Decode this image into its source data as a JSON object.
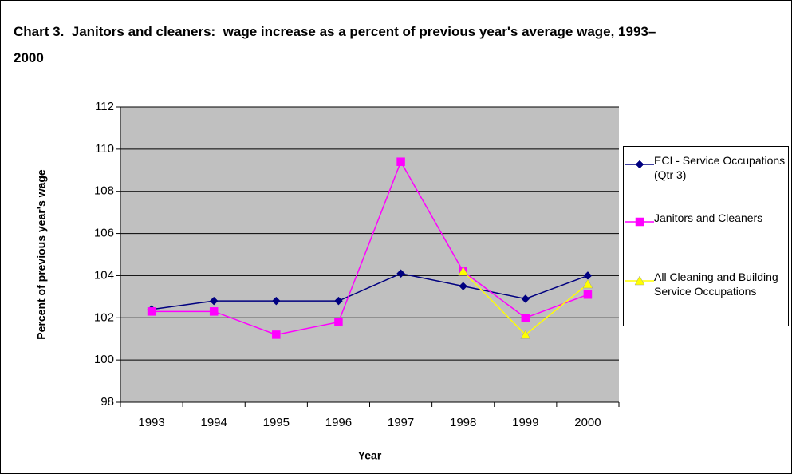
{
  "chart_data": {
    "type": "line",
    "title": "Chart 3.  Janitors and cleaners:  wage increase as a percent of previous year's average wage, 1993–2000",
    "x_label": "Year",
    "y_label": "Percent of previous year's wage",
    "categories": [
      "1993",
      "1994",
      "1995",
      "1996",
      "1997",
      "1998",
      "1999",
      "2000"
    ],
    "series": [
      {
        "name": "ECI - Service Occupations (Qtr 3)",
        "color": "#000080",
        "marker": "diamond",
        "values": [
          102.4,
          102.8,
          102.8,
          102.8,
          104.1,
          103.5,
          102.9,
          104.0
        ]
      },
      {
        "name": "Janitors and Cleaners",
        "color": "#ff00ff",
        "marker": "square",
        "values": [
          102.3,
          102.3,
          101.2,
          101.8,
          109.4,
          104.2,
          102.0,
          103.1
        ]
      },
      {
        "name": "All Cleaning and Building Service Occupations",
        "color": "#ffff00",
        "marker": "triangle",
        "values": [
          null,
          null,
          null,
          null,
          null,
          104.2,
          101.2,
          103.6
        ]
      }
    ],
    "ylim": [
      98,
      112
    ],
    "yticks": [
      98,
      100,
      102,
      104,
      106,
      108,
      110,
      112
    ],
    "grid": true,
    "legend": "right"
  }
}
